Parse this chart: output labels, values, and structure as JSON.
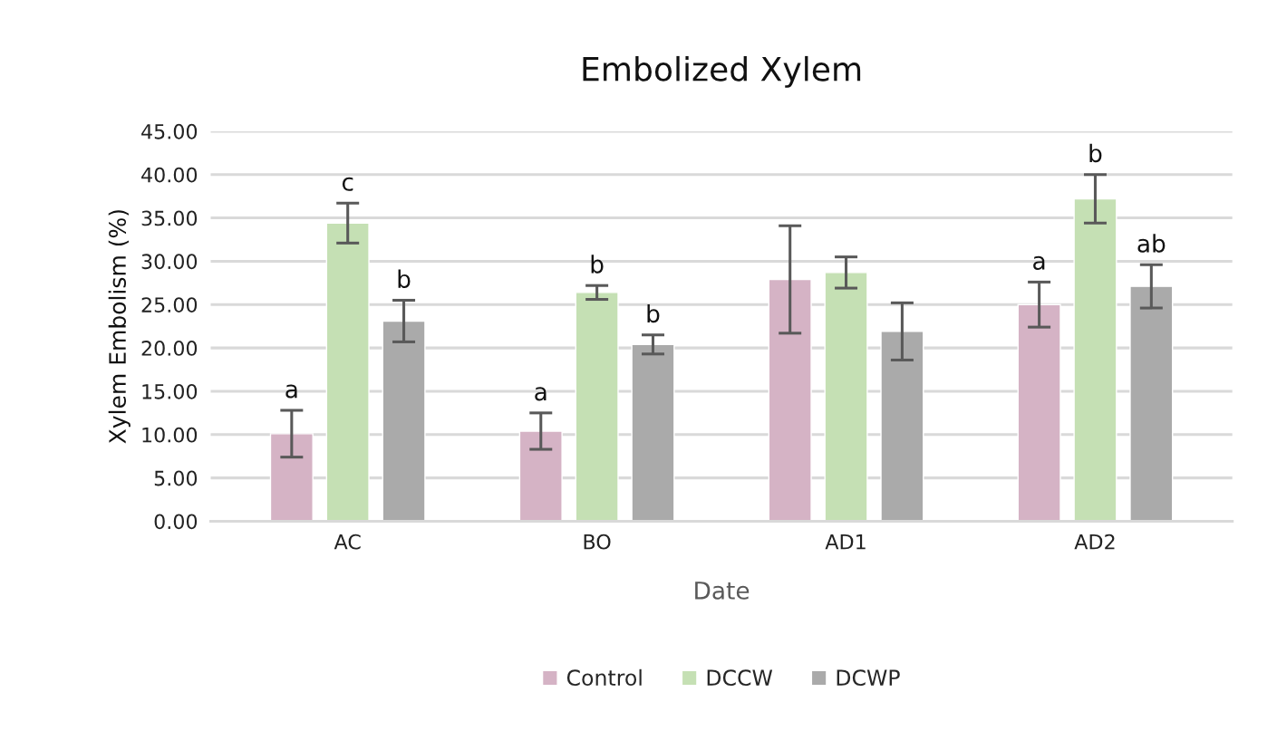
{
  "chart_data": {
    "type": "bar",
    "title": "Embolized Xylem",
    "xlabel": "Date",
    "ylabel": "Xylem Embolism (%)",
    "categories": [
      "AC",
      "BO",
      "AD1",
      "AD2"
    ],
    "series": [
      {
        "name": "Control",
        "color": "#d5b3c5",
        "values": [
          10.1,
          10.4,
          27.9,
          25.0
        ],
        "errors": [
          2.7,
          2.1,
          6.2,
          2.6
        ],
        "value_labels": [
          "a",
          "a",
          null,
          "a"
        ]
      },
      {
        "name": "DCCW",
        "color": "#c5e0b4",
        "values": [
          34.4,
          26.4,
          28.7,
          37.2
        ],
        "errors": [
          2.3,
          0.8,
          1.8,
          2.8
        ],
        "value_labels": [
          "c",
          "b",
          null,
          "b"
        ]
      },
      {
        "name": "DCWP",
        "color": "#aaaaaa",
        "values": [
          23.1,
          20.4,
          21.9,
          27.1
        ],
        "errors": [
          2.4,
          1.1,
          3.3,
          2.5
        ],
        "value_labels": [
          "b",
          "b",
          null,
          "ab"
        ]
      }
    ],
    "ylim": [
      0,
      45
    ],
    "yticks": [
      {
        "value": 0,
        "label": "0.00"
      },
      {
        "value": 5,
        "label": "5.00"
      },
      {
        "value": 10,
        "label": "10.00"
      },
      {
        "value": 15,
        "label": "15.00"
      },
      {
        "value": 20,
        "label": "20.00"
      },
      {
        "value": 25,
        "label": "25.00"
      },
      {
        "value": 30,
        "label": "30.00"
      },
      {
        "value": 35,
        "label": "35.00"
      },
      {
        "value": 40,
        "label": "40.00"
      },
      {
        "value": 45,
        "label": "45.00"
      }
    ],
    "grid": "y",
    "legend": "bottom"
  }
}
